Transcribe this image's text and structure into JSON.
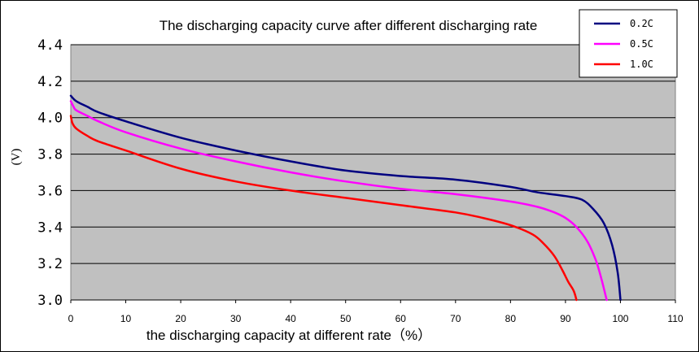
{
  "chart_data": {
    "type": "line",
    "title": "The discharging capacity curve after different discharging rate",
    "xlabel": "the discharging capacity at different rate（%）",
    "ylabel": "(V)",
    "xlim": [
      0,
      110
    ],
    "ylim": [
      3.0,
      4.4
    ],
    "x_ticks": [
      "0",
      "10",
      "20",
      "30",
      "40",
      "50",
      "60",
      "70",
      "80",
      "90",
      "100",
      "110"
    ],
    "y_ticks": [
      "3.0",
      "3.2",
      "3.4",
      "3.6",
      "3.8",
      "4.0",
      "4.2",
      "4.4"
    ],
    "grid": "horizontal",
    "legend_position": "top-right",
    "series": [
      {
        "name": "0.2C",
        "color": "#000080",
        "points": [
          [
            0,
            4.12
          ],
          [
            1,
            4.09
          ],
          [
            3,
            4.06
          ],
          [
            5,
            4.03
          ],
          [
            10,
            3.98
          ],
          [
            20,
            3.89
          ],
          [
            30,
            3.82
          ],
          [
            40,
            3.76
          ],
          [
            50,
            3.71
          ],
          [
            60,
            3.68
          ],
          [
            70,
            3.66
          ],
          [
            80,
            3.62
          ],
          [
            85,
            3.59
          ],
          [
            90,
            3.57
          ],
          [
            93,
            3.55
          ],
          [
            95,
            3.5
          ],
          [
            97,
            3.42
          ],
          [
            98.5,
            3.3
          ],
          [
            99.5,
            3.15
          ],
          [
            100,
            3.0
          ]
        ]
      },
      {
        "name": "0.5C",
        "color": "#ff00ff",
        "points": [
          [
            0,
            4.09
          ],
          [
            0.5,
            4.06
          ],
          [
            1,
            4.04
          ],
          [
            3,
            4.01
          ],
          [
            5,
            3.98
          ],
          [
            10,
            3.92
          ],
          [
            20,
            3.83
          ],
          [
            30,
            3.76
          ],
          [
            40,
            3.7
          ],
          [
            50,
            3.65
          ],
          [
            60,
            3.61
          ],
          [
            70,
            3.58
          ],
          [
            80,
            3.54
          ],
          [
            85,
            3.51
          ],
          [
            88,
            3.48
          ],
          [
            90,
            3.45
          ],
          [
            92,
            3.4
          ],
          [
            94,
            3.32
          ],
          [
            95.5,
            3.22
          ],
          [
            96.5,
            3.12
          ],
          [
            97.5,
            3.0
          ]
        ]
      },
      {
        "name": "1.0C",
        "color": "#ff0000",
        "points": [
          [
            0,
            4.01
          ],
          [
            0.3,
            3.97
          ],
          [
            1,
            3.94
          ],
          [
            3,
            3.9
          ],
          [
            5,
            3.87
          ],
          [
            10,
            3.82
          ],
          [
            20,
            3.72
          ],
          [
            30,
            3.65
          ],
          [
            40,
            3.6
          ],
          [
            50,
            3.56
          ],
          [
            60,
            3.52
          ],
          [
            70,
            3.48
          ],
          [
            75,
            3.45
          ],
          [
            80,
            3.41
          ],
          [
            84,
            3.36
          ],
          [
            86,
            3.31
          ],
          [
            88,
            3.24
          ],
          [
            89.5,
            3.16
          ],
          [
            90.5,
            3.1
          ],
          [
            91.5,
            3.05
          ],
          [
            92,
            3.0
          ]
        ]
      }
    ]
  }
}
